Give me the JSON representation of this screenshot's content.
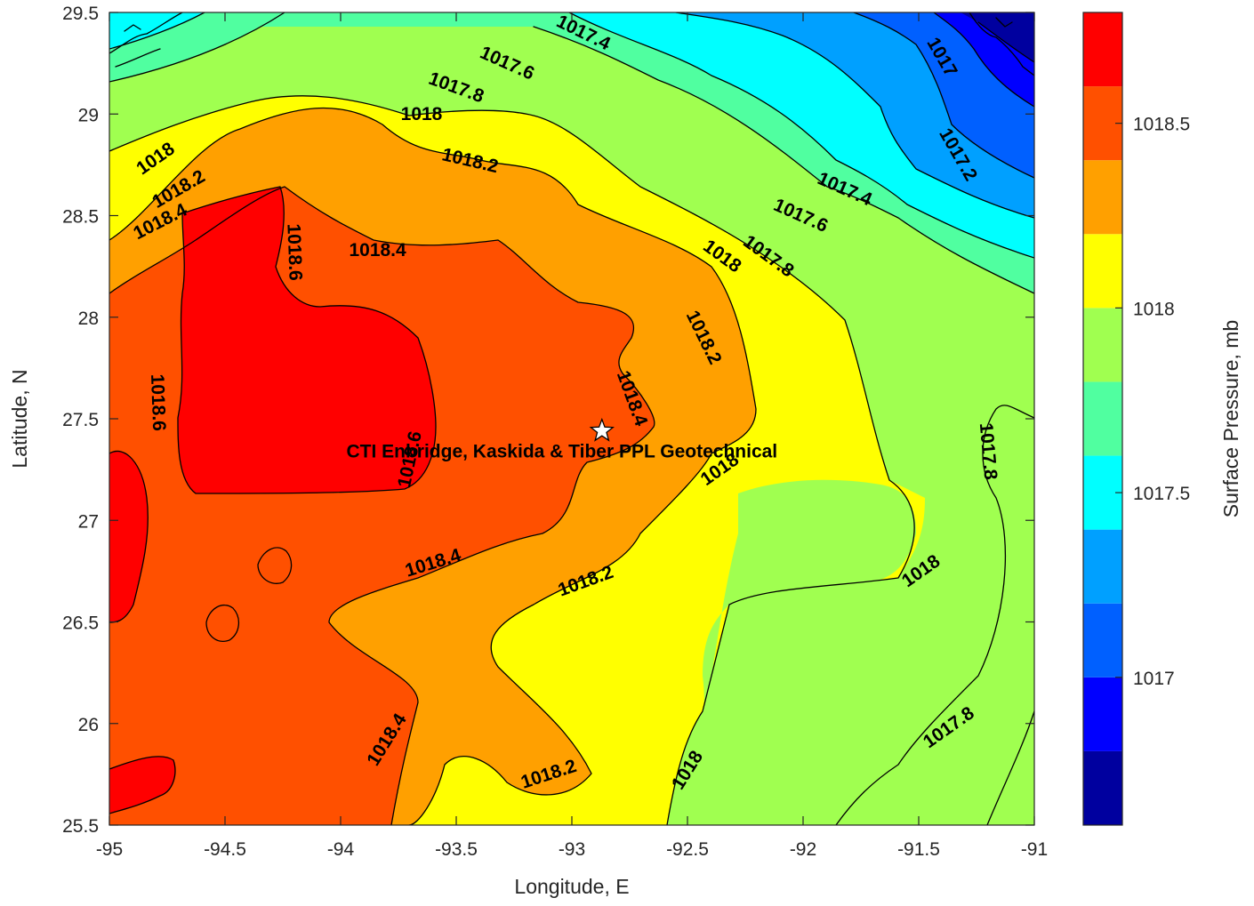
{
  "chart_data": {
    "type": "contour",
    "title": "",
    "xlabel": "Longitude, E",
    "ylabel": "Latitude, N",
    "xlim": [
      -95,
      -91
    ],
    "ylim": [
      25.5,
      29.5
    ],
    "x_ticks": [
      "-95",
      "-94.5",
      "-94",
      "-93.5",
      "-93",
      "-92.5",
      "-92",
      "-91.5",
      "-91"
    ],
    "y_ticks": [
      "25.5",
      "26",
      "26.5",
      "27",
      "27.5",
      "28",
      "28.5",
      "29",
      "29.5"
    ],
    "colorbar": {
      "label": "Surface Pressure, mb",
      "ticks": [
        "1017",
        "1017.5",
        "1018",
        "1018.5"
      ],
      "range": [
        1016.6,
        1018.8
      ],
      "levels": [
        1016.6,
        1016.8,
        1017.0,
        1017.2,
        1017.4,
        1017.6,
        1017.8,
        1018.0,
        1018.2,
        1018.4,
        1018.6,
        1018.8
      ],
      "colors": [
        "#00009f",
        "#0000ff",
        "#0060ff",
        "#00a0ff",
        "#00ffff",
        "#50ffa0",
        "#a0ff50",
        "#ffff00",
        "#ffa000",
        "#ff5000",
        "#ff0000",
        "#a00000"
      ]
    },
    "contour_labels": [
      {
        "text": "1017.4",
        "lon": -92.95,
        "lat": 29.4,
        "rot": 26
      },
      {
        "text": "1017.6",
        "lon": -93.28,
        "lat": 29.25,
        "rot": 24
      },
      {
        "text": "1017.8",
        "lon": -93.5,
        "lat": 29.13,
        "rot": 20
      },
      {
        "text": "1018",
        "lon": -93.65,
        "lat": 29.0,
        "rot": 0
      },
      {
        "text": "1018",
        "lon": -94.8,
        "lat": 28.78,
        "rot": -35
      },
      {
        "text": "1018.2",
        "lon": -94.7,
        "lat": 28.63,
        "rot": -30
      },
      {
        "text": "1018.4",
        "lon": -94.78,
        "lat": 28.47,
        "rot": -27
      },
      {
        "text": "1018.2",
        "lon": -93.44,
        "lat": 28.77,
        "rot": 13
      },
      {
        "text": "1018.6",
        "lon": -94.2,
        "lat": 28.32,
        "rot": 88
      },
      {
        "text": "1018.4",
        "lon": -93.84,
        "lat": 28.33,
        "rot": 0
      },
      {
        "text": "1017",
        "lon": -91.4,
        "lat": 29.28,
        "rot": 60
      },
      {
        "text": "1017.2",
        "lon": -91.33,
        "lat": 28.8,
        "rot": 60
      },
      {
        "text": "1017.4",
        "lon": -91.82,
        "lat": 28.63,
        "rot": 24
      },
      {
        "text": "1017.6",
        "lon": -92.01,
        "lat": 28.5,
        "rot": 24
      },
      {
        "text": "1017.8",
        "lon": -92.15,
        "lat": 28.3,
        "rot": 36
      },
      {
        "text": "1018",
        "lon": -92.35,
        "lat": 28.3,
        "rot": 36
      },
      {
        "text": "1018.2",
        "lon": -92.43,
        "lat": 27.9,
        "rot": 64
      },
      {
        "text": "1018.4",
        "lon": -92.74,
        "lat": 27.6,
        "rot": 70
      },
      {
        "text": "1018.6",
        "lon": -94.79,
        "lat": 27.58,
        "rot": 88
      },
      {
        "text": "1018.6",
        "lon": -93.7,
        "lat": 27.3,
        "rot": -78
      },
      {
        "text": "1017.8",
        "lon": -91.2,
        "lat": 27.34,
        "rot": 85
      },
      {
        "text": "1018",
        "lon": -92.36,
        "lat": 27.25,
        "rot": -35
      },
      {
        "text": "1018.4",
        "lon": -93.6,
        "lat": 26.79,
        "rot": -17
      },
      {
        "text": "1018.2",
        "lon": -92.94,
        "lat": 26.7,
        "rot": -20
      },
      {
        "text": "1018",
        "lon": -91.49,
        "lat": 26.75,
        "rot": -35
      },
      {
        "text": "1017.8",
        "lon": -91.37,
        "lat": 25.98,
        "rot": -35
      },
      {
        "text": "1018",
        "lon": -92.5,
        "lat": 25.77,
        "rot": -58
      },
      {
        "text": "1018.4",
        "lon": -93.8,
        "lat": 25.92,
        "rot": -58
      },
      {
        "text": "1018.2",
        "lon": -93.1,
        "lat": 25.75,
        "rot": -18
      }
    ],
    "annotation": {
      "marker": "star",
      "lon": -92.87,
      "lat": 27.44,
      "text": "CTI Enbridge, Kaskida & Tiber PPL Geotechnical"
    }
  }
}
